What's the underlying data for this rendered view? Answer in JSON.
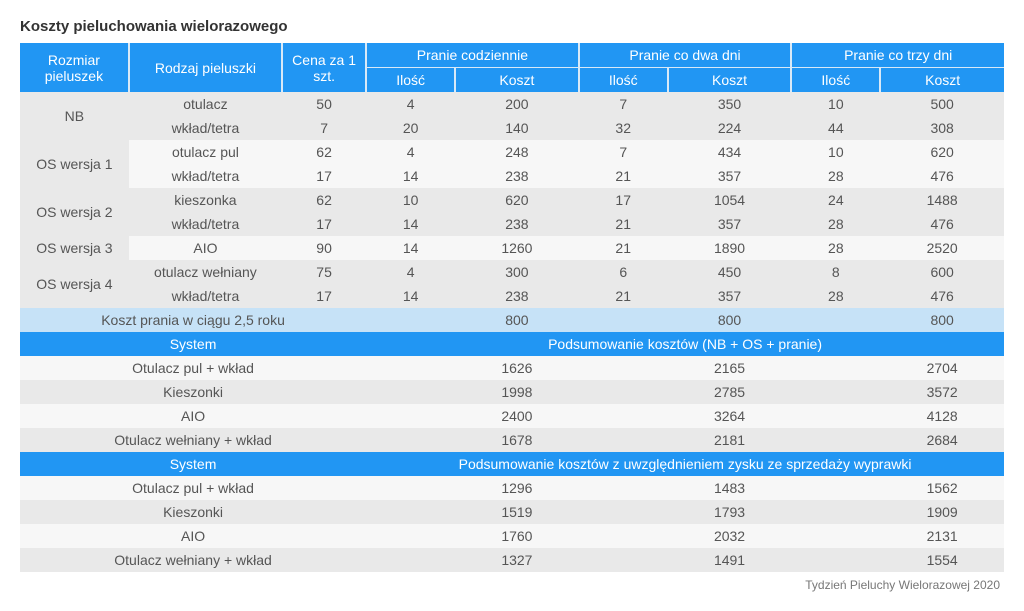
{
  "title": "Koszty pieluchowania wielorazowego",
  "footer": "Tydzień Pieluchy Wielorazowej 2020",
  "header": {
    "col_size": "Rozmiar pieluszek",
    "col_type": "Rodzaj pieluszki",
    "col_price": "Cena za 1 szt.",
    "group_daily": "Pranie codziennie",
    "group_2days": "Pranie co dwa dni",
    "group_3days": "Pranie co trzy dni",
    "sub_qty": "Ilość",
    "sub_cost": "Koszt"
  },
  "rows": [
    {
      "group": "NB",
      "type": "otulacz",
      "price": 50,
      "q1": 4,
      "c1": 200,
      "q2": 7,
      "c2": 350,
      "q3": 10,
      "c3": 500
    },
    {
      "group": "",
      "type": "wkład/tetra",
      "price": 7,
      "q1": 20,
      "c1": 140,
      "q2": 32,
      "c2": 224,
      "q3": 44,
      "c3": 308
    },
    {
      "group": "OS wersja 1",
      "type": "otulacz pul",
      "price": 62,
      "q1": 4,
      "c1": 248,
      "q2": 7,
      "c2": 434,
      "q3": 10,
      "c3": 620
    },
    {
      "group": "",
      "type": "wkład/tetra",
      "price": 17,
      "q1": 14,
      "c1": 238,
      "q2": 21,
      "c2": 357,
      "q3": 28,
      "c3": 476
    },
    {
      "group": "OS wersja 2",
      "type": "kieszonka",
      "price": 62,
      "q1": 10,
      "c1": 620,
      "q2": 17,
      "c2": 1054,
      "q3": 24,
      "c3": 1488
    },
    {
      "group": "",
      "type": "wkład/tetra",
      "price": 17,
      "q1": 14,
      "c1": 238,
      "q2": 21,
      "c2": 357,
      "q3": 28,
      "c3": 476
    },
    {
      "group": "OS wersja 3",
      "type": "AIO",
      "price": 90,
      "q1": 14,
      "c1": 1260,
      "q2": 21,
      "c2": 1890,
      "q3": 28,
      "c3": 2520
    },
    {
      "group": "OS wersja 4",
      "type": "otulacz wełniany",
      "price": 75,
      "q1": 4,
      "c1": 300,
      "q2": 6,
      "c2": 450,
      "q3": 8,
      "c3": 600
    },
    {
      "group": "",
      "type": "wkład/tetra",
      "price": 17,
      "q1": 14,
      "c1": 238,
      "q2": 21,
      "c2": 357,
      "q3": 28,
      "c3": 476
    }
  ],
  "wash_cost": {
    "label": "Koszt prania w ciągu 2,5 roku",
    "c1": 800,
    "c2": 800,
    "c3": 800
  },
  "summary1_header": {
    "left": "System",
    "right": "Podsumowanie kosztów (NB + OS + pranie)"
  },
  "summary1": [
    {
      "name": "Otulacz pul + wkład",
      "c1": 1626,
      "c2": 2165,
      "c3": 2704
    },
    {
      "name": "Kieszonki",
      "c1": 1998,
      "c2": 2785,
      "c3": 3572
    },
    {
      "name": "AIO",
      "c1": 2400,
      "c2": 3264,
      "c3": 4128
    },
    {
      "name": "Otulacz wełniany + wkład",
      "c1": 1678,
      "c2": 2181,
      "c3": 2684
    }
  ],
  "summary2_header": {
    "left": "System",
    "right": "Podsumowanie kosztów z uwzględnieniem zysku ze sprzedaży wyprawki"
  },
  "summary2": [
    {
      "name": "Otulacz pul + wkład",
      "c1": 1296,
      "c2": 1483,
      "c3": 1562
    },
    {
      "name": "Kieszonki",
      "c1": 1519,
      "c2": 1793,
      "c3": 1909
    },
    {
      "name": "AIO",
      "c1": 1760,
      "c2": 2032,
      "c3": 2131
    },
    {
      "name": "Otulacz wełniany + wkład",
      "c1": 1327,
      "c2": 1491,
      "c3": 1554
    }
  ],
  "row_groups": [
    {
      "start": 0,
      "span": 2,
      "shade": "even"
    },
    {
      "start": 2,
      "span": 2,
      "shade": "odd"
    },
    {
      "start": 4,
      "span": 2,
      "shade": "even"
    },
    {
      "start": 6,
      "span": 1,
      "shade": "odd"
    },
    {
      "start": 7,
      "span": 2,
      "shade": "even"
    }
  ],
  "summary_shades": [
    "odd",
    "even",
    "odd",
    "even"
  ],
  "colors": {
    "header_bg": "#2196f3",
    "header_sep": "#d8e9f7",
    "even": "#e9e9e9",
    "odd": "#f7f7f7",
    "lightblue": "#c6e2f7",
    "text": "#555"
  }
}
